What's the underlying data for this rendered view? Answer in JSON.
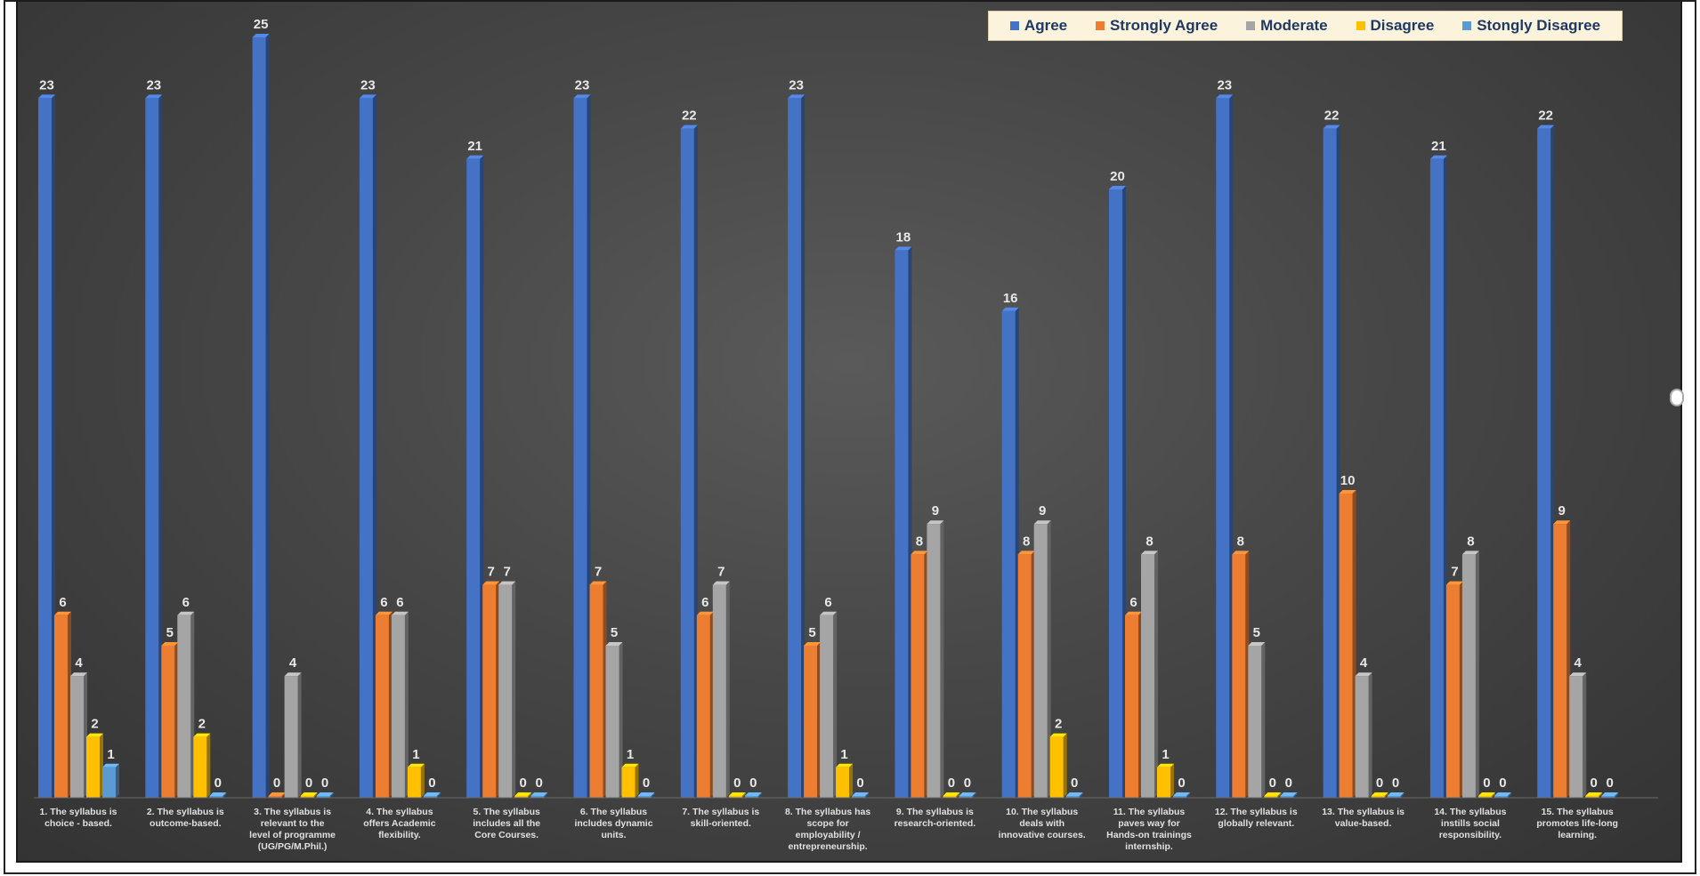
{
  "chart_data": {
    "type": "bar",
    "title": "",
    "xlabel": "",
    "ylabel": "",
    "ylim": [
      0,
      25
    ],
    "grid": false,
    "legend_position": "top-right",
    "categories": [
      "1. The syllabus is choice - based.",
      "2. The syllabus is outcome-based.",
      "3. The syllabus is relevant to the level of programme (UG/PG/M.Phil.)",
      "4. The syllabus offers Academic flexibility.",
      "5. The syllabus includes all the Core Courses.",
      "6. The syllabus includes dynamic units.",
      "7. The syllabus is skill-oriented.",
      "8. The syllabus has scope for employability / entrepreneurship.",
      "9. The syllabus is research-oriented.",
      "10. The syllabus deals with innovative courses.",
      "11. The syllabus paves way for Hands-on trainings internship.",
      "12. The syllabus is globally relevant.",
      "13. The syllabus is value-based.",
      "14. The syllabus instills social responsibility.",
      "15. The syllabus promotes life-long learning."
    ],
    "series": [
      {
        "name": "Agree",
        "color": "#4472c4",
        "values": [
          23,
          23,
          25,
          23,
          21,
          23,
          22,
          23,
          18,
          16,
          20,
          23,
          22,
          21,
          22
        ]
      },
      {
        "name": "Strongly Agree",
        "color": "#ed7d31",
        "values": [
          6,
          5,
          0,
          6,
          7,
          7,
          6,
          5,
          8,
          8,
          6,
          8,
          10,
          7,
          9
        ]
      },
      {
        "name": "Moderate",
        "color": "#a5a5a5",
        "values": [
          4,
          6,
          4,
          6,
          7,
          5,
          7,
          6,
          9,
          9,
          8,
          5,
          4,
          8,
          4
        ]
      },
      {
        "name": "Disagree",
        "color": "#ffc000",
        "values": [
          2,
          2,
          0,
          1,
          0,
          1,
          0,
          1,
          0,
          2,
          1,
          0,
          0,
          0,
          0
        ]
      },
      {
        "name": "Stongly Disagree",
        "color": "#5b9bd5",
        "values": [
          1,
          0,
          0,
          0,
          0,
          0,
          0,
          0,
          0,
          0,
          0,
          0,
          0,
          0,
          0
        ]
      }
    ]
  }
}
